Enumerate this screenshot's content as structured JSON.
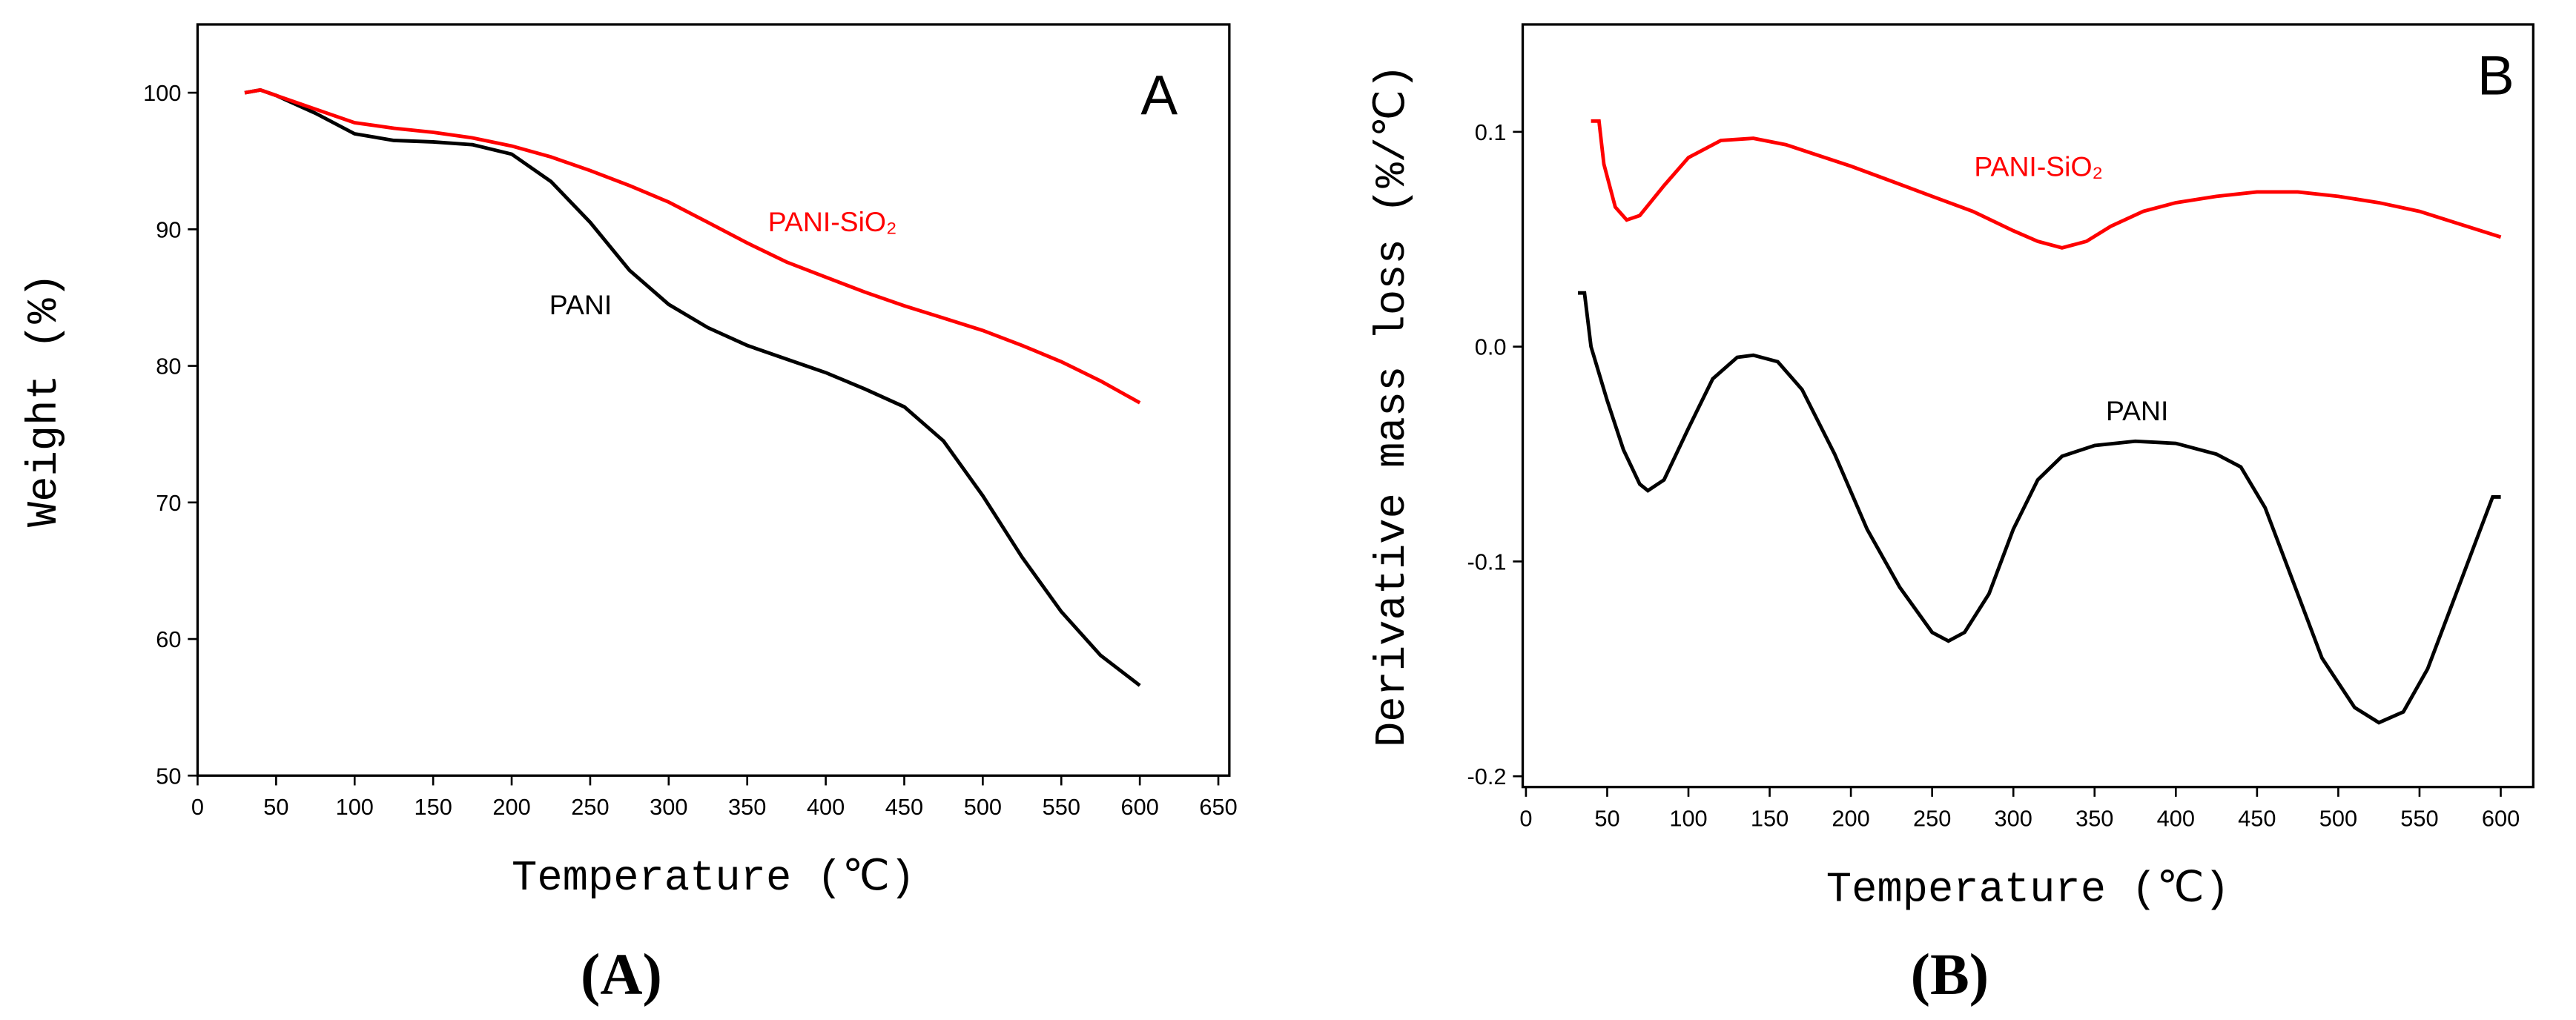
{
  "chart_data": [
    {
      "type": "line",
      "annotation": "A",
      "caption": "(A)",
      "x_label": "Temperature (℃)",
      "y_label": "Weight (%)",
      "xlim": [
        0,
        657
      ],
      "xticks": [
        0,
        50,
        100,
        150,
        200,
        250,
        300,
        350,
        400,
        450,
        500,
        550,
        600,
        650
      ],
      "ylim": [
        50,
        105
      ],
      "yticks": [
        50,
        60,
        70,
        80,
        90,
        100
      ],
      "series": [
        {
          "name": "PANI",
          "color": "#000000",
          "x": [
            30,
            40,
            50,
            75,
            100,
            125,
            150,
            175,
            200,
            225,
            250,
            275,
            300,
            325,
            350,
            375,
            400,
            425,
            450,
            475,
            500,
            525,
            550,
            575,
            600
          ],
          "values": [
            100,
            100.2,
            99.8,
            98.5,
            97,
            96.5,
            96.4,
            96.2,
            95.5,
            93.5,
            90.5,
            87,
            84.5,
            82.8,
            81.5,
            80.5,
            79.5,
            78.3,
            77,
            74.5,
            70.5,
            66,
            62,
            58.8,
            56.6
          ]
        },
        {
          "name": "PANI-SiO₂",
          "color": "#ff0000",
          "x": [
            30,
            40,
            50,
            75,
            100,
            125,
            150,
            175,
            200,
            225,
            250,
            275,
            300,
            325,
            350,
            375,
            400,
            425,
            450,
            475,
            500,
            525,
            550,
            575,
            600
          ],
          "values": [
            100,
            100.2,
            99.8,
            98.8,
            97.8,
            97.4,
            97.1,
            96.7,
            96.1,
            95.3,
            94.3,
            93.2,
            92,
            90.5,
            89,
            87.6,
            86.5,
            85.4,
            84.4,
            83.5,
            82.6,
            81.5,
            80.3,
            78.9,
            77.3
          ]
        }
      ]
    },
    {
      "type": "line",
      "annotation": "B",
      "caption": "(B)",
      "x_label": "Temperature (℃)",
      "y_label": "Derivative mass loss (%/℃)",
      "xlim": [
        -2,
        620
      ],
      "xticks": [
        0,
        50,
        100,
        150,
        200,
        250,
        300,
        350,
        400,
        450,
        500,
        550,
        600
      ],
      "ylim": [
        -0.205,
        0.15
      ],
      "yticks": [
        -0.2,
        -0.1,
        {
          "value": 0,
          "label": "0.0"
        },
        0.1
      ],
      "series": [
        {
          "name": "PANI",
          "color": "#000000",
          "x": [
            32,
            36,
            40,
            50,
            60,
            70,
            75,
            85,
            100,
            115,
            130,
            140,
            155,
            170,
            190,
            210,
            230,
            250,
            260,
            270,
            285,
            300,
            315,
            330,
            350,
            375,
            400,
            425,
            440,
            455,
            470,
            490,
            510,
            525,
            540,
            555,
            570,
            585,
            595,
            600
          ],
          "values": [
            0.025,
            0.025,
            0,
            -0.025,
            -0.048,
            -0.064,
            -0.067,
            -0.062,
            -0.038,
            -0.015,
            -0.005,
            -0.004,
            -0.007,
            -0.02,
            -0.05,
            -0.085,
            -0.112,
            -0.133,
            -0.137,
            -0.133,
            -0.115,
            -0.085,
            -0.062,
            -0.051,
            -0.046,
            -0.044,
            -0.045,
            -0.05,
            -0.056,
            -0.075,
            -0.105,
            -0.145,
            -0.168,
            -0.175,
            -0.17,
            -0.15,
            -0.12,
            -0.09,
            -0.07,
            -0.07
          ]
        },
        {
          "name": "PANI-SiO₂",
          "color": "#ff0000",
          "x": [
            40,
            45,
            48,
            55,
            62,
            70,
            85,
            100,
            120,
            140,
            160,
            180,
            200,
            225,
            250,
            275,
            300,
            315,
            330,
            345,
            360,
            380,
            400,
            425,
            450,
            475,
            500,
            525,
            550,
            575,
            600
          ],
          "values": [
            0.105,
            0.105,
            0.085,
            0.065,
            0.059,
            0.061,
            0.075,
            0.088,
            0.096,
            0.097,
            0.094,
            0.089,
            0.084,
            0.077,
            0.07,
            0.063,
            0.054,
            0.049,
            0.046,
            0.049,
            0.056,
            0.063,
            0.067,
            0.07,
            0.072,
            0.072,
            0.07,
            0.067,
            0.063,
            0.057,
            0.051
          ]
        }
      ]
    }
  ]
}
